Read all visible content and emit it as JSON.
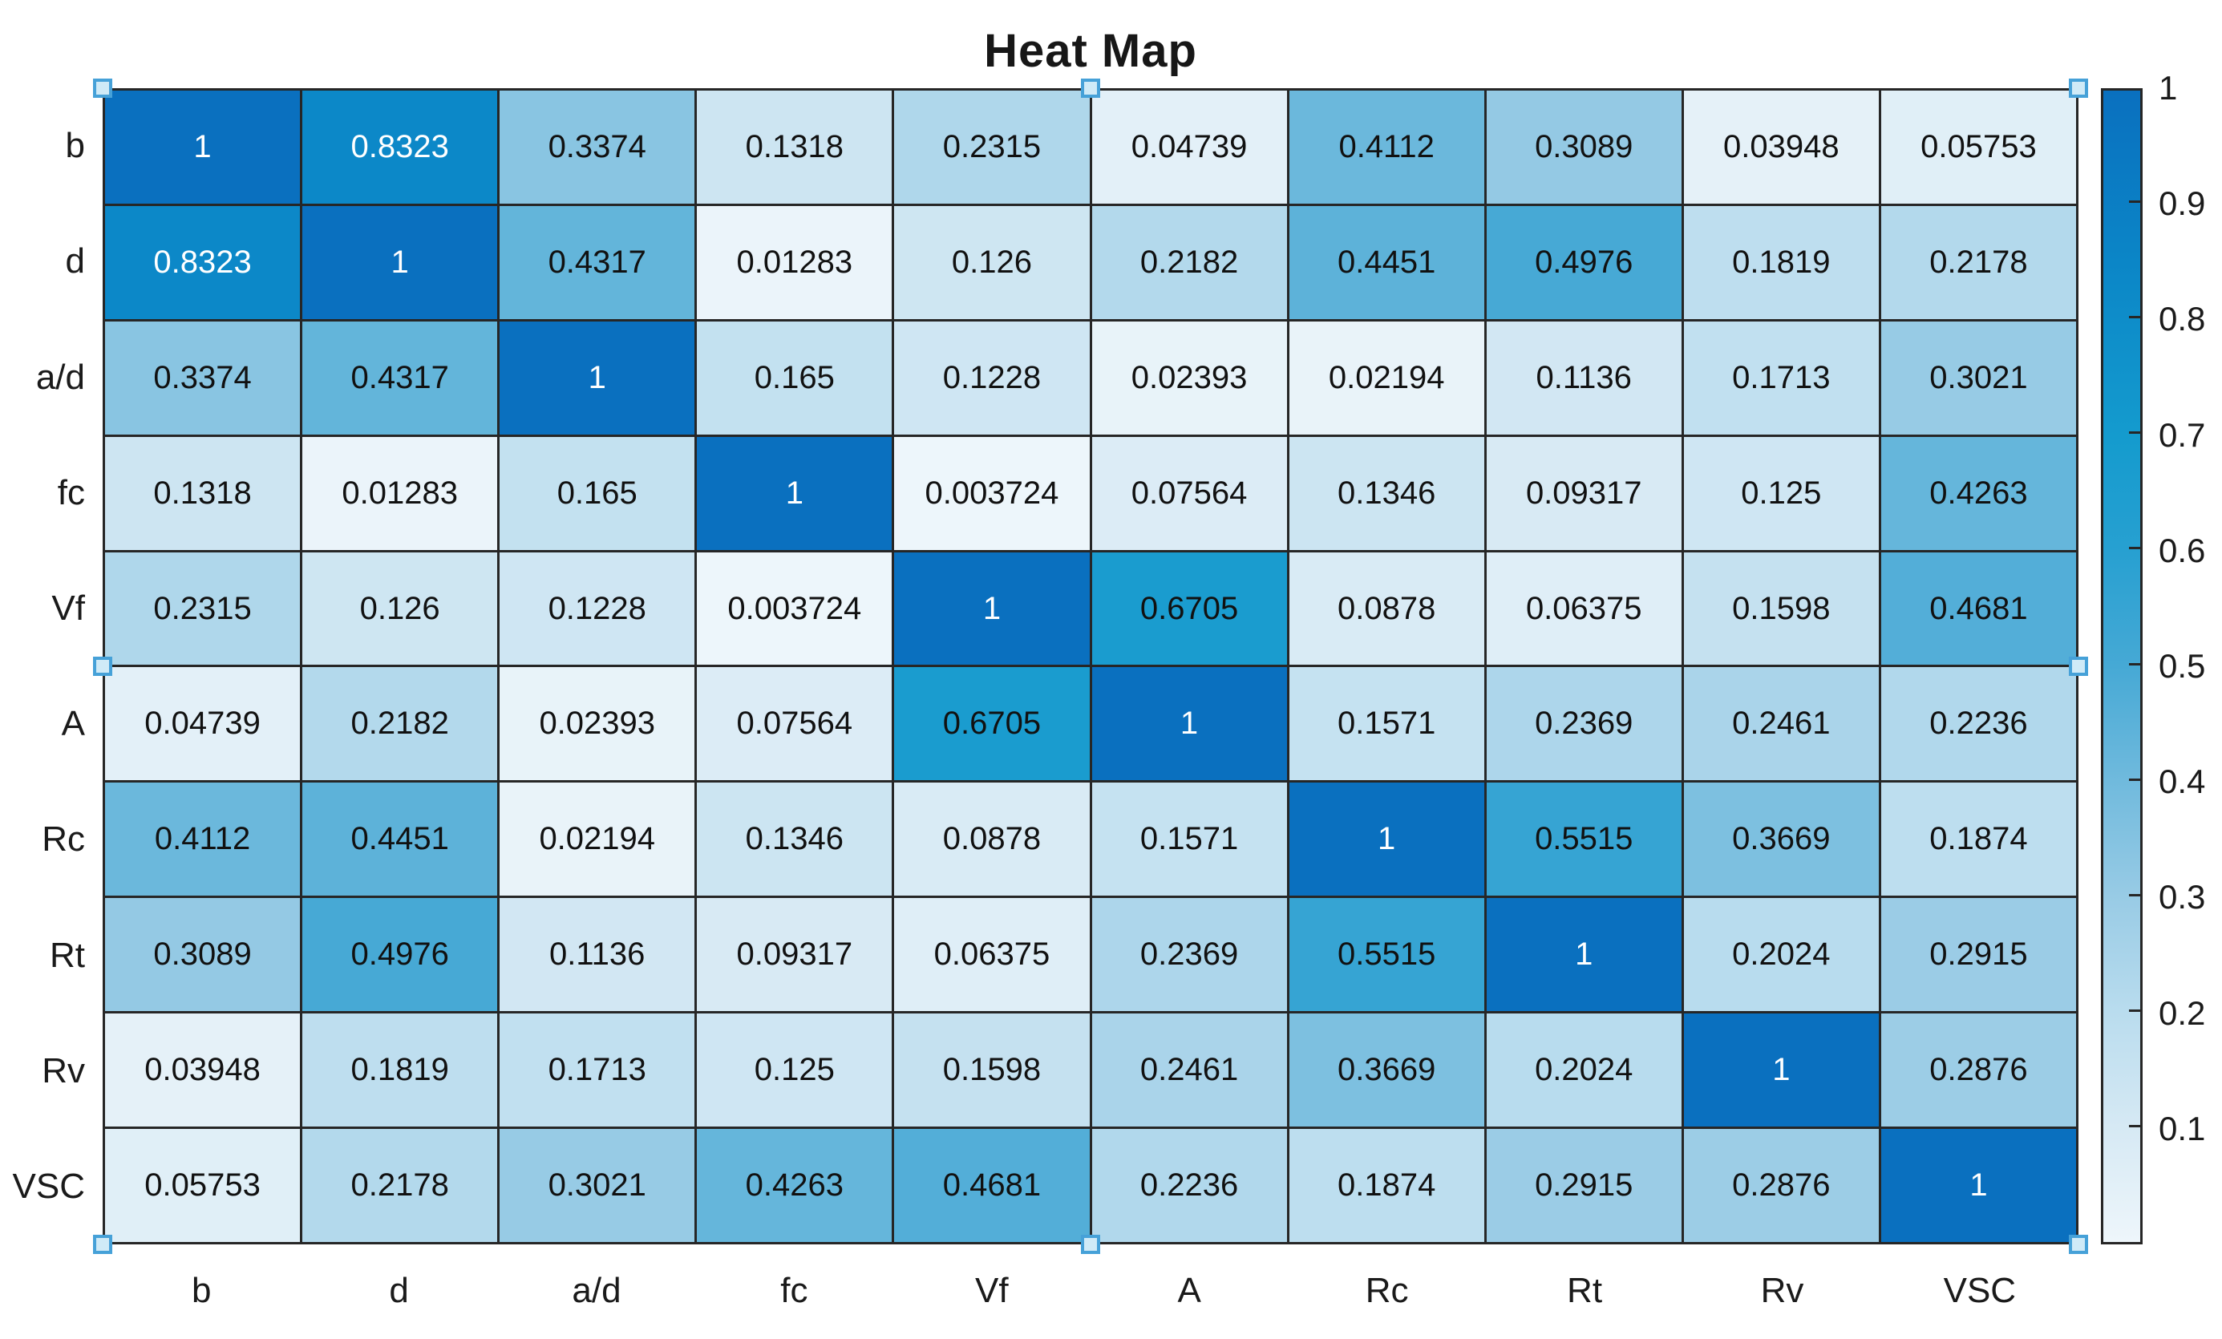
{
  "figure": {
    "title": "Heat Map",
    "background": "#ffffff"
  },
  "chart_data": {
    "type": "heatmap",
    "title": "Heat Map",
    "x_categories": [
      "b",
      "d",
      "a/d",
      "fc",
      "Vf",
      "A",
      "Rc",
      "Rt",
      "Rv",
      "VSC"
    ],
    "y_categories": [
      "b",
      "d",
      "a/d",
      "fc",
      "Vf",
      "A",
      "Rc",
      "Rt",
      "Rv",
      "VSC"
    ],
    "matrix": [
      [
        "1",
        "0.8323",
        "0.3374",
        "0.1318",
        "0.2315",
        "0.04739",
        "0.4112",
        "0.3089",
        "0.03948",
        "0.05753"
      ],
      [
        "0.8323",
        "1",
        "0.4317",
        "0.01283",
        "0.126",
        "0.2182",
        "0.4451",
        "0.4976",
        "0.1819",
        "0.2178"
      ],
      [
        "0.3374",
        "0.4317",
        "1",
        "0.165",
        "0.1228",
        "0.02393",
        "0.02194",
        "0.1136",
        "0.1713",
        "0.3021"
      ],
      [
        "0.1318",
        "0.01283",
        "0.165",
        "1",
        "0.003724",
        "0.07564",
        "0.1346",
        "0.09317",
        "0.125",
        "0.4263"
      ],
      [
        "0.2315",
        "0.126",
        "0.1228",
        "0.003724",
        "1",
        "0.6705",
        "0.0878",
        "0.06375",
        "0.1598",
        "0.4681"
      ],
      [
        "0.04739",
        "0.2182",
        "0.02393",
        "0.07564",
        "0.6705",
        "1",
        "0.1571",
        "0.2369",
        "0.2461",
        "0.2236"
      ],
      [
        "0.4112",
        "0.4451",
        "0.02194",
        "0.1346",
        "0.0878",
        "0.1571",
        "1",
        "0.5515",
        "0.3669",
        "0.1874"
      ],
      [
        "0.3089",
        "0.4976",
        "0.1136",
        "0.09317",
        "0.06375",
        "0.2369",
        "0.5515",
        "1",
        "0.2024",
        "0.2915"
      ],
      [
        "0.03948",
        "0.1819",
        "0.1713",
        "0.125",
        "0.1598",
        "0.2461",
        "0.3669",
        "0.2024",
        "1",
        "0.2876"
      ],
      [
        "0.05753",
        "0.2178",
        "0.3021",
        "0.4263",
        "0.4681",
        "0.2236",
        "0.1874",
        "0.2915",
        "0.2876",
        "1"
      ]
    ],
    "color_range": [
      0,
      1
    ],
    "colorbar": {
      "position": "right",
      "tick_labels": [
        "1",
        "0.9",
        "0.8",
        "0.7",
        "0.6",
        "0.5",
        "0.4",
        "0.3",
        "0.2",
        "0.1"
      ],
      "tick_values": [
        1,
        0.9,
        0.8,
        0.7,
        0.6,
        0.5,
        0.4,
        0.3,
        0.2,
        0.1
      ]
    },
    "colormap": [
      {
        "t": 0.0,
        "color": "#eef6fb"
      },
      {
        "t": 0.1,
        "color": "#d6e9f4"
      },
      {
        "t": 0.2,
        "color": "#b9dcee"
      },
      {
        "t": 0.3,
        "color": "#98cbe5"
      },
      {
        "t": 0.4,
        "color": "#70badd"
      },
      {
        "t": 0.5,
        "color": "#46a9d5"
      },
      {
        "t": 0.6,
        "color": "#27a0d1"
      },
      {
        "t": 0.7,
        "color": "#149bce"
      },
      {
        "t": 0.85,
        "color": "#0b86c7"
      },
      {
        "t": 1.0,
        "color": "#0a70bf"
      }
    ],
    "text_color_threshold": 0.75,
    "grid_line_color": "#262626",
    "cell_text_dark": "#111111",
    "cell_text_light": "#ffffff",
    "grid_on": true,
    "legend": null
  },
  "selection": {
    "handle_fill": "#cfeaf7",
    "handle_border": "#46a1d8",
    "positions": [
      "top-left",
      "top-center",
      "top-right",
      "middle-left",
      "middle-right",
      "bottom-left",
      "bottom-center",
      "bottom-right"
    ]
  }
}
